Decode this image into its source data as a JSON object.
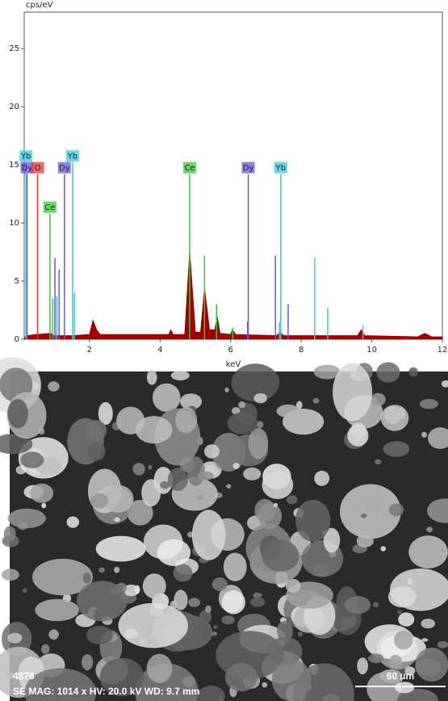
{
  "chart_data": {
    "type": "area",
    "y_label": "cps/eV",
    "x_label": "keV",
    "xlim": [
      0.15,
      12
    ],
    "ylim": [
      0,
      28
    ],
    "xticks": [
      2,
      4,
      6,
      8,
      10,
      12
    ],
    "yticks": [
      0,
      5,
      10,
      15,
      20,
      25
    ],
    "spectrum": {
      "color": "#a00000",
      "x": [
        0.15,
        0.2,
        0.5,
        0.9,
        1.0,
        1.5,
        2.0,
        2.1,
        2.2,
        2.3,
        4.0,
        4.25,
        4.3,
        4.37,
        4.7,
        4.84,
        5.0,
        5.15,
        5.26,
        5.4,
        5.55,
        5.62,
        5.7,
        6.0,
        6.05,
        6.15,
        7.3,
        7.4,
        7.5,
        9.6,
        9.7,
        9.8,
        11.3,
        11.5,
        11.7,
        12
      ],
      "values": [
        0,
        0.3,
        0.4,
        0.5,
        0.3,
        0.3,
        0.4,
        1.6,
        0.8,
        0.4,
        0.4,
        0.4,
        0.8,
        0.4,
        0.4,
        7.5,
        0.6,
        0.6,
        4.4,
        0.8,
        0.8,
        1.9,
        0.5,
        0.4,
        0.8,
        0.4,
        0.3,
        0.6,
        0.3,
        0.3,
        0.8,
        0.3,
        0.2,
        0.5,
        0.2,
        0.2
      ]
    },
    "series": [
      {
        "name": "Yb",
        "color": "#33ccdd",
        "x": [
          0.2
        ],
        "values": [
          15.2
        ]
      },
      {
        "name": "Dy",
        "color": "#6655ee",
        "x": [
          0.23
        ],
        "values": [
          14.2
        ]
      },
      {
        "name": "O",
        "color": "#ee3333",
        "x": [
          0.53
        ],
        "values": [
          14.2
        ]
      },
      {
        "name": "Ce",
        "color": "#33cc33",
        "x": [
          0.88
        ],
        "values": [
          10.8
        ]
      },
      {
        "name": "Dy",
        "color": "#6655ee",
        "x": [
          1.29
        ],
        "values": [
          14.2
        ]
      },
      {
        "name": "Yb",
        "color": "#33ccdd",
        "x": [
          1.52
        ],
        "values": [
          15.2
        ]
      },
      {
        "name": "Ce",
        "color": "#33cc33",
        "x": [
          4.84
        ],
        "values": [
          14.2
        ]
      },
      {
        "name": "Dy",
        "color": "#6655ee",
        "x": [
          6.5
        ],
        "values": [
          14.2
        ]
      },
      {
        "name": "Yb",
        "color": "#33ccdd",
        "x": [
          7.42
        ],
        "values": [
          14.2
        ]
      },
      {
        "color": "#33cc33",
        "x": [
          0.96,
          5.26,
          5.6,
          6.06
        ],
        "values": [
          3.5,
          7.2,
          3,
          1
        ]
      },
      {
        "color": "#6655ee",
        "x": [
          1.02,
          1.14,
          7.27,
          7.63,
          6.48
        ],
        "values": [
          7,
          6,
          7.2,
          3,
          1.5
        ]
      },
      {
        "color": "#33ccdd",
        "x": [
          1.07,
          1.57,
          8.38,
          8.75,
          9.75,
          7.38
        ],
        "values": [
          3.7,
          4,
          7,
          2.7,
          1.2,
          1.5
        ]
      }
    ]
  },
  "image": {
    "sample_id": "4876",
    "info": "SE MAG: 1014 x HV: 20.0 kV WD: 9.7 mm",
    "scale_bar": "60 µm"
  }
}
